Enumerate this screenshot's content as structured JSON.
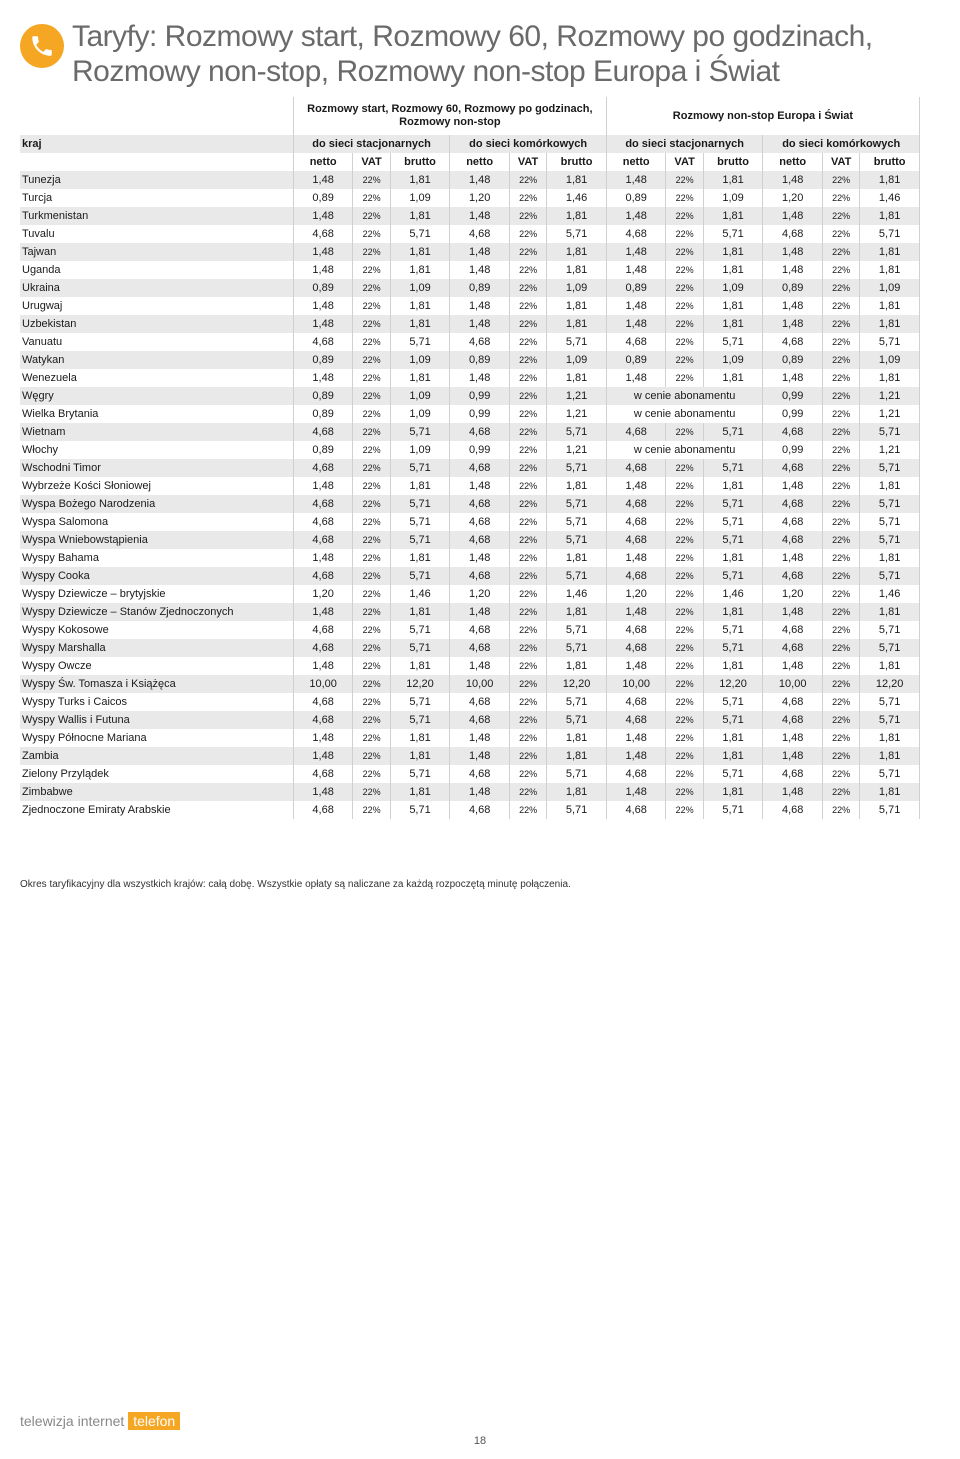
{
  "title": "Taryfy: Rozmowy start, Rozmowy 60, Rozmowy po godzinach, Rozmowy non-stop, Rozmowy non-stop Europa i Świat",
  "brand": {
    "w1": "telewizja",
    "w2": "internet",
    "w3": "telefon"
  },
  "page_number": "18",
  "footer": "Okres taryfikacyjny dla wszystkich krajów: całą dobę. Wszystkie opłaty są naliczane za każdą rozpoczętą minutę połączenia.",
  "colors": {
    "accent": "#f5a623",
    "title_color": "#6a6a6a",
    "row_alt_bg": "#e9e9e9",
    "border": "#d0d0d0"
  },
  "headers": {
    "group_left": "Rozmowy start, Rozmowy 60, Rozmowy po godzinach, Rozmowy non-stop",
    "group_right": "Rozmowy non-stop Europa i Świat",
    "kraj": "kraj",
    "stac": "do sieci stacjonarnych",
    "kom": "do sieci komórkowych",
    "netto": "netto",
    "vat": "VAT",
    "brutto": "brutto"
  },
  "abonament_text": "w cenie abonamentu",
  "rows": [
    {
      "c": "Tunezja",
      "v": [
        [
          "1,48",
          "22%",
          "1,81"
        ],
        [
          "1,48",
          "22%",
          "1,81"
        ],
        [
          "1,48",
          "22%",
          "1,81"
        ],
        [
          "1,48",
          "22%",
          "1,81"
        ]
      ]
    },
    {
      "c": "Turcja",
      "v": [
        [
          "0,89",
          "22%",
          "1,09"
        ],
        [
          "1,20",
          "22%",
          "1,46"
        ],
        [
          "0,89",
          "22%",
          "1,09"
        ],
        [
          "1,20",
          "22%",
          "1,46"
        ]
      ]
    },
    {
      "c": "Turkmenistan",
      "v": [
        [
          "1,48",
          "22%",
          "1,81"
        ],
        [
          "1,48",
          "22%",
          "1,81"
        ],
        [
          "1,48",
          "22%",
          "1,81"
        ],
        [
          "1,48",
          "22%",
          "1,81"
        ]
      ]
    },
    {
      "c": "Tuvalu",
      "v": [
        [
          "4,68",
          "22%",
          "5,71"
        ],
        [
          "4,68",
          "22%",
          "5,71"
        ],
        [
          "4,68",
          "22%",
          "5,71"
        ],
        [
          "4,68",
          "22%",
          "5,71"
        ]
      ]
    },
    {
      "c": "Tajwan",
      "v": [
        [
          "1,48",
          "22%",
          "1,81"
        ],
        [
          "1,48",
          "22%",
          "1,81"
        ],
        [
          "1,48",
          "22%",
          "1,81"
        ],
        [
          "1,48",
          "22%",
          "1,81"
        ]
      ]
    },
    {
      "c": "Uganda",
      "v": [
        [
          "1,48",
          "22%",
          "1,81"
        ],
        [
          "1,48",
          "22%",
          "1,81"
        ],
        [
          "1,48",
          "22%",
          "1,81"
        ],
        [
          "1,48",
          "22%",
          "1,81"
        ]
      ]
    },
    {
      "c": "Ukraina",
      "v": [
        [
          "0,89",
          "22%",
          "1,09"
        ],
        [
          "0,89",
          "22%",
          "1,09"
        ],
        [
          "0,89",
          "22%",
          "1,09"
        ],
        [
          "0,89",
          "22%",
          "1,09"
        ]
      ]
    },
    {
      "c": "Urugwaj",
      "v": [
        [
          "1,48",
          "22%",
          "1,81"
        ],
        [
          "1,48",
          "22%",
          "1,81"
        ],
        [
          "1,48",
          "22%",
          "1,81"
        ],
        [
          "1,48",
          "22%",
          "1,81"
        ]
      ]
    },
    {
      "c": "Uzbekistan",
      "v": [
        [
          "1,48",
          "22%",
          "1,81"
        ],
        [
          "1,48",
          "22%",
          "1,81"
        ],
        [
          "1,48",
          "22%",
          "1,81"
        ],
        [
          "1,48",
          "22%",
          "1,81"
        ]
      ]
    },
    {
      "c": "Vanuatu",
      "v": [
        [
          "4,68",
          "22%",
          "5,71"
        ],
        [
          "4,68",
          "22%",
          "5,71"
        ],
        [
          "4,68",
          "22%",
          "5,71"
        ],
        [
          "4,68",
          "22%",
          "5,71"
        ]
      ]
    },
    {
      "c": "Watykan",
      "v": [
        [
          "0,89",
          "22%",
          "1,09"
        ],
        [
          "0,89",
          "22%",
          "1,09"
        ],
        [
          "0,89",
          "22%",
          "1,09"
        ],
        [
          "0,89",
          "22%",
          "1,09"
        ]
      ]
    },
    {
      "c": "Wenezuela",
      "v": [
        [
          "1,48",
          "22%",
          "1,81"
        ],
        [
          "1,48",
          "22%",
          "1,81"
        ],
        [
          "1,48",
          "22%",
          "1,81"
        ],
        [
          "1,48",
          "22%",
          "1,81"
        ]
      ]
    },
    {
      "c": "Węgry",
      "v": [
        [
          "0,89",
          "22%",
          "1,09"
        ],
        [
          "0,99",
          "22%",
          "1,21"
        ],
        "ABO",
        [
          "0,99",
          "22%",
          "1,21"
        ]
      ]
    },
    {
      "c": "Wielka Brytania",
      "v": [
        [
          "0,89",
          "22%",
          "1,09"
        ],
        [
          "0,99",
          "22%",
          "1,21"
        ],
        "ABO",
        [
          "0,99",
          "22%",
          "1,21"
        ]
      ]
    },
    {
      "c": "Wietnam",
      "v": [
        [
          "4,68",
          "22%",
          "5,71"
        ],
        [
          "4,68",
          "22%",
          "5,71"
        ],
        [
          "4,68",
          "22%",
          "5,71"
        ],
        [
          "4,68",
          "22%",
          "5,71"
        ]
      ]
    },
    {
      "c": "Włochy",
      "v": [
        [
          "0,89",
          "22%",
          "1,09"
        ],
        [
          "0,99",
          "22%",
          "1,21"
        ],
        "ABO",
        [
          "0,99",
          "22%",
          "1,21"
        ]
      ]
    },
    {
      "c": "Wschodni Timor",
      "v": [
        [
          "4,68",
          "22%",
          "5,71"
        ],
        [
          "4,68",
          "22%",
          "5,71"
        ],
        [
          "4,68",
          "22%",
          "5,71"
        ],
        [
          "4,68",
          "22%",
          "5,71"
        ]
      ]
    },
    {
      "c": "Wybrzeże Kości Słoniowej",
      "v": [
        [
          "1,48",
          "22%",
          "1,81"
        ],
        [
          "1,48",
          "22%",
          "1,81"
        ],
        [
          "1,48",
          "22%",
          "1,81"
        ],
        [
          "1,48",
          "22%",
          "1,81"
        ]
      ]
    },
    {
      "c": "Wyspa Bożego Narodzenia",
      "v": [
        [
          "4,68",
          "22%",
          "5,71"
        ],
        [
          "4,68",
          "22%",
          "5,71"
        ],
        [
          "4,68",
          "22%",
          "5,71"
        ],
        [
          "4,68",
          "22%",
          "5,71"
        ]
      ]
    },
    {
      "c": "Wyspa Salomona",
      "v": [
        [
          "4,68",
          "22%",
          "5,71"
        ],
        [
          "4,68",
          "22%",
          "5,71"
        ],
        [
          "4,68",
          "22%",
          "5,71"
        ],
        [
          "4,68",
          "22%",
          "5,71"
        ]
      ]
    },
    {
      "c": "Wyspa Wniebowstąpienia",
      "v": [
        [
          "4,68",
          "22%",
          "5,71"
        ],
        [
          "4,68",
          "22%",
          "5,71"
        ],
        [
          "4,68",
          "22%",
          "5,71"
        ],
        [
          "4,68",
          "22%",
          "5,71"
        ]
      ]
    },
    {
      "c": "Wyspy Bahama",
      "v": [
        [
          "1,48",
          "22%",
          "1,81"
        ],
        [
          "1,48",
          "22%",
          "1,81"
        ],
        [
          "1,48",
          "22%",
          "1,81"
        ],
        [
          "1,48",
          "22%",
          "1,81"
        ]
      ]
    },
    {
      "c": "Wyspy Cooka",
      "v": [
        [
          "4,68",
          "22%",
          "5,71"
        ],
        [
          "4,68",
          "22%",
          "5,71"
        ],
        [
          "4,68",
          "22%",
          "5,71"
        ],
        [
          "4,68",
          "22%",
          "5,71"
        ]
      ]
    },
    {
      "c": "Wyspy Dziewicze – brytyjskie",
      "v": [
        [
          "1,20",
          "22%",
          "1,46"
        ],
        [
          "1,20",
          "22%",
          "1,46"
        ],
        [
          "1,20",
          "22%",
          "1,46"
        ],
        [
          "1,20",
          "22%",
          "1,46"
        ]
      ]
    },
    {
      "c": "Wyspy Dziewicze – Stanów Zjednoczonych",
      "v": [
        [
          "1,48",
          "22%",
          "1,81"
        ],
        [
          "1,48",
          "22%",
          "1,81"
        ],
        [
          "1,48",
          "22%",
          "1,81"
        ],
        [
          "1,48",
          "22%",
          "1,81"
        ]
      ]
    },
    {
      "c": "Wyspy Kokosowe",
      "v": [
        [
          "4,68",
          "22%",
          "5,71"
        ],
        [
          "4,68",
          "22%",
          "5,71"
        ],
        [
          "4,68",
          "22%",
          "5,71"
        ],
        [
          "4,68",
          "22%",
          "5,71"
        ]
      ]
    },
    {
      "c": "Wyspy Marshalla",
      "v": [
        [
          "4,68",
          "22%",
          "5,71"
        ],
        [
          "4,68",
          "22%",
          "5,71"
        ],
        [
          "4,68",
          "22%",
          "5,71"
        ],
        [
          "4,68",
          "22%",
          "5,71"
        ]
      ]
    },
    {
      "c": "Wyspy Owcze",
      "v": [
        [
          "1,48",
          "22%",
          "1,81"
        ],
        [
          "1,48",
          "22%",
          "1,81"
        ],
        [
          "1,48",
          "22%",
          "1,81"
        ],
        [
          "1,48",
          "22%",
          "1,81"
        ]
      ]
    },
    {
      "c": "Wyspy Św. Tomasza i Książęca",
      "v": [
        [
          "10,00",
          "22%",
          "12,20"
        ],
        [
          "10,00",
          "22%",
          "12,20"
        ],
        [
          "10,00",
          "22%",
          "12,20"
        ],
        [
          "10,00",
          "22%",
          "12,20"
        ]
      ]
    },
    {
      "c": "Wyspy Turks i Caicos",
      "v": [
        [
          "4,68",
          "22%",
          "5,71"
        ],
        [
          "4,68",
          "22%",
          "5,71"
        ],
        [
          "4,68",
          "22%",
          "5,71"
        ],
        [
          "4,68",
          "22%",
          "5,71"
        ]
      ]
    },
    {
      "c": "Wyspy Wallis i Futuna",
      "v": [
        [
          "4,68",
          "22%",
          "5,71"
        ],
        [
          "4,68",
          "22%",
          "5,71"
        ],
        [
          "4,68",
          "22%",
          "5,71"
        ],
        [
          "4,68",
          "22%",
          "5,71"
        ]
      ]
    },
    {
      "c": "Wyspy Północne Mariana",
      "v": [
        [
          "1,48",
          "22%",
          "1,81"
        ],
        [
          "1,48",
          "22%",
          "1,81"
        ],
        [
          "1,48",
          "22%",
          "1,81"
        ],
        [
          "1,48",
          "22%",
          "1,81"
        ]
      ]
    },
    {
      "c": "Zambia",
      "v": [
        [
          "1,48",
          "22%",
          "1,81"
        ],
        [
          "1,48",
          "22%",
          "1,81"
        ],
        [
          "1,48",
          "22%",
          "1,81"
        ],
        [
          "1,48",
          "22%",
          "1,81"
        ]
      ]
    },
    {
      "c": "Zielony Przylądek",
      "v": [
        [
          "4,68",
          "22%",
          "5,71"
        ],
        [
          "4,68",
          "22%",
          "5,71"
        ],
        [
          "4,68",
          "22%",
          "5,71"
        ],
        [
          "4,68",
          "22%",
          "5,71"
        ]
      ]
    },
    {
      "c": "Zimbabwe",
      "v": [
        [
          "1,48",
          "22%",
          "1,81"
        ],
        [
          "1,48",
          "22%",
          "1,81"
        ],
        [
          "1,48",
          "22%",
          "1,81"
        ],
        [
          "1,48",
          "22%",
          "1,81"
        ]
      ]
    },
    {
      "c": "Zjednoczone Emiraty Arabskie",
      "v": [
        [
          "4,68",
          "22%",
          "5,71"
        ],
        [
          "4,68",
          "22%",
          "5,71"
        ],
        [
          "4,68",
          "22%",
          "5,71"
        ],
        [
          "4,68",
          "22%",
          "5,71"
        ]
      ]
    }
  ]
}
